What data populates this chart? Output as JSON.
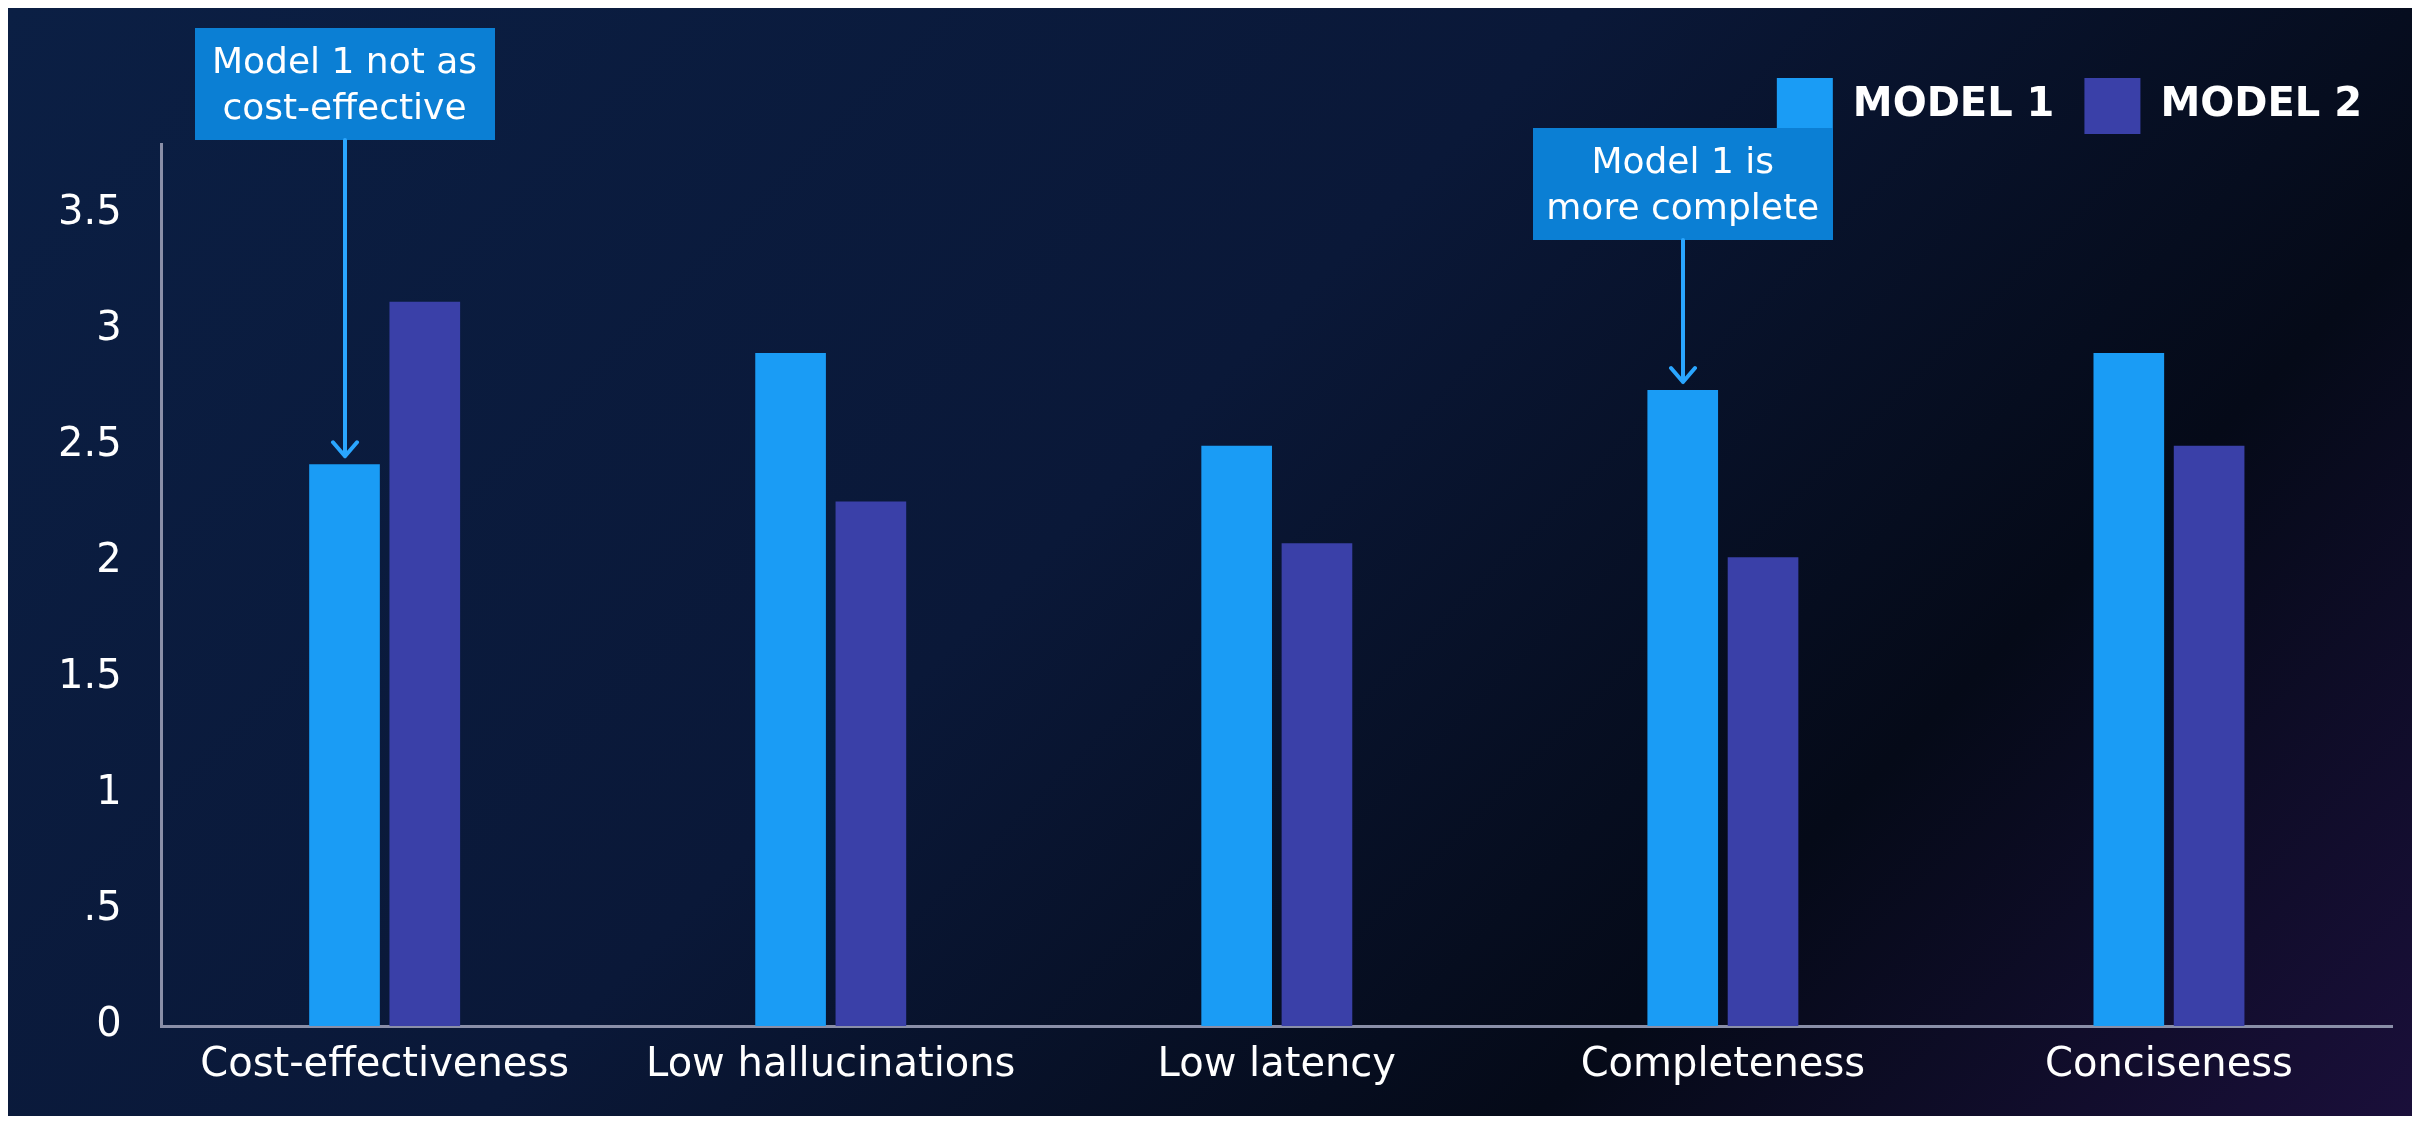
{
  "chart_data": {
    "type": "bar",
    "categories": [
      "Cost-effectiveness",
      "Low hallucinations",
      "Low latency",
      "Completeness",
      "Conciseness"
    ],
    "series": [
      {
        "name": "MODEL 1",
        "color": "#1a9cf5",
        "values": [
          2.42,
          2.9,
          2.5,
          2.74,
          2.9
        ]
      },
      {
        "name": "MODEL 2",
        "color": "#3a40a8",
        "values": [
          3.12,
          2.26,
          2.08,
          2.02,
          2.5
        ]
      }
    ],
    "ylim": [
      0,
      3.8
    ],
    "yticks": [
      0,
      {
        "value": 0.5,
        "label": ".5"
      },
      1,
      1.5,
      2,
      2.5,
      3,
      3.5
    ],
    "grid": false,
    "legend": "top right",
    "annotations": [
      "Model 1 not as cost-effective",
      "Model 1 is more complete"
    ]
  }
}
